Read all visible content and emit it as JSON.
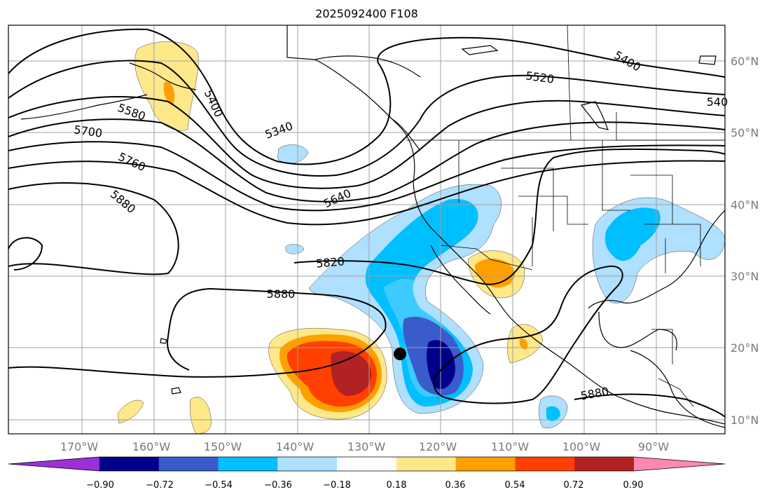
{
  "title": "2025092400 F108",
  "latitude_labels": [
    "60°N",
    "50°N",
    "40°N",
    "30°N",
    "20°N",
    "10°N"
  ],
  "longitude_labels": [
    "170°W",
    "160°W",
    "150°W",
    "140°W",
    "130°W",
    "120°W",
    "110°W",
    "100°W",
    "90°W"
  ],
  "contour_labels": [
    "5400",
    "5520",
    "540",
    "5340",
    "5400",
    "5580",
    "5700",
    "5760",
    "5880",
    "5640",
    "5820",
    "5880",
    "5880"
  ],
  "colorbar": {
    "tick_labels": [
      "−0.90",
      "−0.72",
      "−0.54",
      "−0.36",
      "−0.18",
      "0.18",
      "0.36",
      "0.54",
      "0.72",
      "0.90"
    ],
    "colors": [
      "#9b30d8",
      "#00008b",
      "#3a5bcc",
      "#00bfff",
      "#b0e0ff",
      "#ffffff",
      "#ffe88a",
      "#ffa000",
      "#ff4000",
      "#b22222",
      "#ff88b0"
    ]
  },
  "marker": {
    "type": "dot",
    "color": "#000000"
  }
}
